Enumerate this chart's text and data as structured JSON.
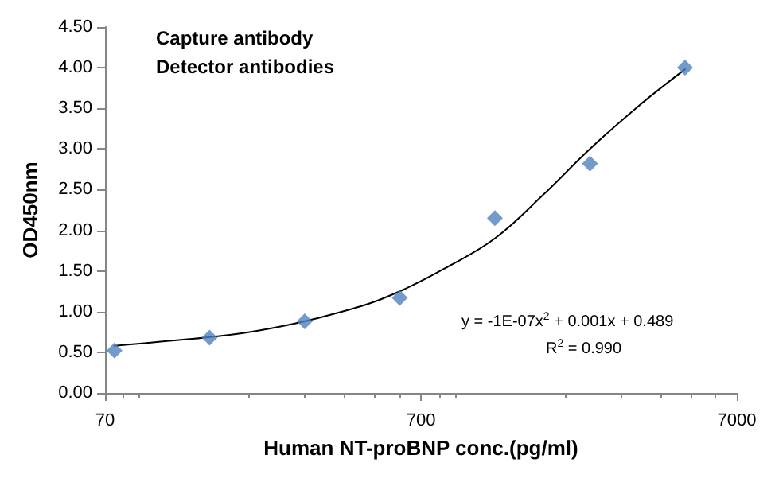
{
  "chart_data": {
    "type": "scatter",
    "xlabel": "Human NT-proBNP conc.(pg/ml)",
    "ylabel": "OD450nm",
    "log": "x",
    "grid": false,
    "xlim": [
      70,
      7000
    ],
    "xticks": [
      70,
      700,
      7000
    ],
    "ylim": [
      0,
      4.5
    ],
    "yticks": [
      {
        "value": 0,
        "label": "0.00"
      },
      {
        "value": 0.5,
        "label": "0.50"
      },
      {
        "value": 1,
        "label": "1.00"
      },
      {
        "value": 1.5,
        "label": "1.50"
      },
      {
        "value": 2,
        "label": "2.00"
      },
      {
        "value": 2.5,
        "label": "2.50"
      },
      {
        "value": 3,
        "label": "3.00"
      },
      {
        "value": 3.5,
        "label": "3.50"
      },
      {
        "value": 4,
        "label": "4.00"
      },
      {
        "value": 4.5,
        "label": "4.50"
      }
    ],
    "annotations": [
      "Capture antibody",
      "Detector antibodies",
      "y = -1E-07x$^{2}$ + 0.001x + 0.489",
      "R$^{2}$ = 0.990"
    ],
    "series": [
      {
        "marker": "diamond",
        "color": "#4f81bd",
        "x": [
          75,
          150,
          300,
          600,
          1200,
          2400,
          4800
        ],
        "values": [
          0.52,
          0.68,
          0.88,
          1.17,
          2.15,
          2.82,
          4.0
        ]
      },
      {
        "type": "line",
        "marker": "none",
        "line_style": "solid",
        "color": "#000000",
        "x": [
          75,
          105,
          210,
          420,
          600,
          850,
          1200,
          1700,
          2400,
          3400,
          4800
        ],
        "values": [
          0.58,
          0.63,
          0.76,
          1.03,
          1.25,
          1.55,
          1.9,
          2.43,
          3.0,
          3.52,
          3.98
        ]
      }
    ]
  }
}
